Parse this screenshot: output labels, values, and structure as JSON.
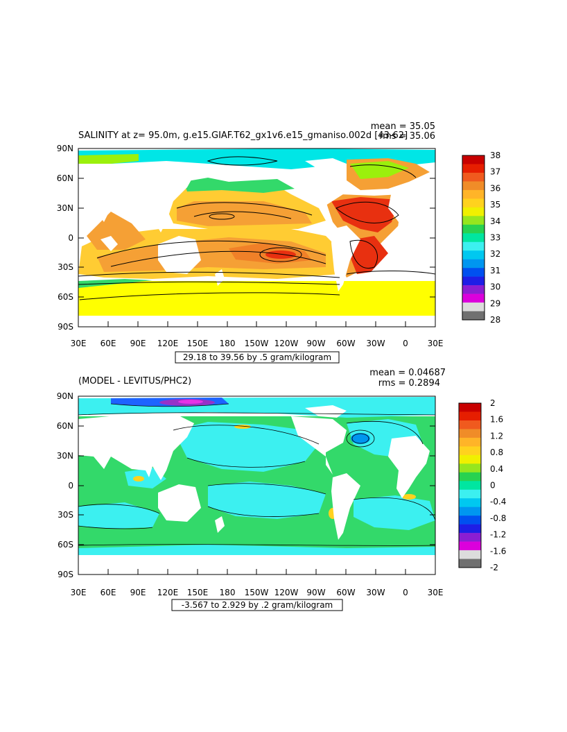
{
  "panels": [
    {
      "title": "SALINITY at z=  95.0m, g.e15.GIAF.T62_gx1v6.e15_gmaniso.002d [43-62]",
      "stats": {
        "mean": "mean = 35.05",
        "rms": "rms = 35.06"
      },
      "range_label": "29.18 to 39.56 by .5 gram/kilogram",
      "lat_labels": [
        "90N",
        "60N",
        "30N",
        "0",
        "30S",
        "60S",
        "90S"
      ],
      "lon_labels": [
        "30E",
        "60E",
        "90E",
        "120E",
        "150E",
        "180",
        "150W",
        "120W",
        "90W",
        "60W",
        "30W",
        "0",
        "30E"
      ],
      "colorbar": {
        "labels": [
          "38",
          "37",
          "36",
          "35",
          "34",
          "33",
          "32",
          "31",
          "30",
          "29",
          "28"
        ],
        "colors": [
          "#c80000",
          "#e61e00",
          "#f05a1e",
          "#f08c28",
          "#ffb428",
          "#ffd21e",
          "#f0f000",
          "#96e61e",
          "#28d250",
          "#00e6a0",
          "#3cf0f0",
          "#00c8f0",
          "#0096f0",
          "#0050f0",
          "#1e1ee6",
          "#8c1ed2",
          "#dc00dc",
          "#dcdcdc",
          "#707070"
        ]
      }
    },
    {
      "title": "(MODEL - LEVITUS/PHC2)",
      "stats": {
        "mean": "mean = 0.04687",
        "rms": "rms = 0.2894"
      },
      "range_label": "-3.567 to 2.929 by .2 gram/kilogram",
      "lat_labels": [
        "90N",
        "60N",
        "30N",
        "0",
        "30S",
        "60S",
        "90S"
      ],
      "lon_labels": [
        "30E",
        "60E",
        "90E",
        "120E",
        "150E",
        "180",
        "150W",
        "120W",
        "90W",
        "60W",
        "30W",
        "0",
        "30E"
      ],
      "colorbar": {
        "labels": [
          "2",
          "1.6",
          "1.2",
          "0.8",
          "0.4",
          "0",
          "-0.4",
          "-0.8",
          "-1.2",
          "-1.6",
          "-2"
        ],
        "colors": [
          "#c80000",
          "#e61e00",
          "#f05a1e",
          "#f08c28",
          "#ffb428",
          "#ffd21e",
          "#f0f000",
          "#96e61e",
          "#28d250",
          "#00e6a0",
          "#3cf0f0",
          "#00c8f0",
          "#0096f0",
          "#0050f0",
          "#1e1ee6",
          "#8c1ed2",
          "#dc00dc",
          "#dcdcdc",
          "#707070"
        ]
      }
    }
  ]
}
